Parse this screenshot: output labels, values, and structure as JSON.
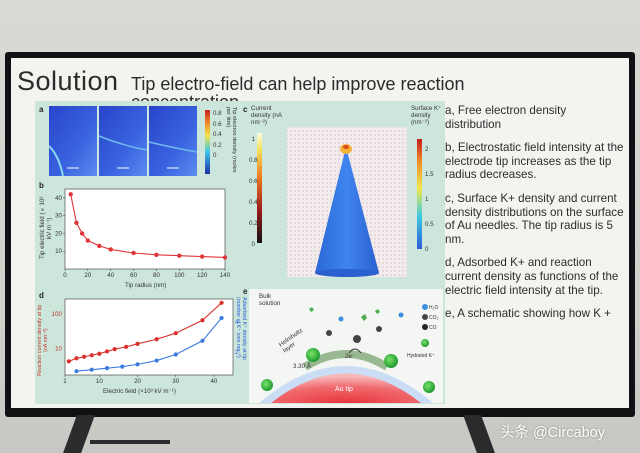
{
  "slide": {
    "title": "Solution",
    "subtitle": "Tip electro-field can help improve reaction",
    "subtitle_cut": "concentration",
    "notes": [
      "a, Free electron density distribution",
      "b, Electrostatic field intensity at the electrode tip increases as the tip radius decreases.",
      "c, Surface K+ density and current density distributions on the surface of Au needles. The tip radius is 5 nm.",
      "d, Adsorbed K+ and reaction current density as functions of the electric field intensity at the tip.",
      "e, A schematic showing how K +"
    ]
  },
  "figure": {
    "panel_labels": [
      "a",
      "b",
      "c",
      "d",
      "e"
    ],
    "panel_a": {
      "colorbar_ticks": [
        "0.8",
        "0.6",
        "0.4",
        "0.2",
        "0"
      ],
      "colorbar_label": "Tip electron density (moles per litre)"
    },
    "panel_c": {
      "left_label": "Current density (nA nm⁻²)",
      "left_ticks": [
        "1",
        "0.8",
        "0.6",
        "0.4",
        "0.2",
        "0"
      ],
      "right_label": "Surface K⁺ density (nm⁻²)",
      "right_ticks": [
        "2",
        "1.5",
        "1",
        "0.5",
        "0"
      ]
    },
    "panel_e": {
      "labels": [
        "Bulk solution",
        "Helmholtz layer",
        "3.30 Å",
        "2e⁻",
        "Au tip"
      ],
      "legend": [
        "H₂O",
        "CO₂",
        "CO",
        "Hydrated K⁺"
      ]
    }
  },
  "chart_data": [
    {
      "type": "line",
      "title": "",
      "xlabel": "Tip radius (nm)",
      "ylabel": "Tip electric field (×10³ kV m⁻¹)",
      "x_ticks": [
        "0",
        "20",
        "40",
        "60",
        "80",
        "100",
        "120",
        "140"
      ],
      "y_ticks": [
        "10",
        "20",
        "30",
        "40"
      ],
      "xlim": [
        0,
        140
      ],
      "ylim": [
        0,
        45
      ],
      "series": [
        {
          "x": [
            5,
            10,
            15,
            20,
            30,
            40,
            60,
            80,
            100,
            120,
            140
          ],
          "y": [
            42,
            26,
            20,
            16,
            13,
            11,
            9,
            8,
            7.5,
            7,
            6.5
          ]
        }
      ]
    },
    {
      "type": "scatter",
      "title": "",
      "xlabel": "Electric field (×10³ kV m⁻¹)",
      "ylabel": "Reaction current density at tip (nA nm⁻²)",
      "ylabel_right": "Adsorbed K⁺ density at tip (number of K⁺ ions nm⁻²)",
      "x_ticks": [
        "1",
        "10",
        "20",
        "30",
        "40"
      ],
      "y_ticks": [
        "10",
        "100"
      ],
      "y_ticks_right": [
        "2",
        "4"
      ],
      "xlim": [
        1,
        45
      ],
      "series": [
        {
          "color": "#d9312b",
          "x": [
            2,
            4,
            6,
            8,
            10,
            12,
            14,
            17,
            20,
            25,
            30,
            37,
            42
          ],
          "y": [
            0.18,
            0.22,
            0.24,
            0.26,
            0.28,
            0.31,
            0.34,
            0.37,
            0.41,
            0.47,
            0.55,
            0.72,
            0.95
          ]
        },
        {
          "color": "#3b7be0",
          "x": [
            4,
            8,
            12,
            16,
            20,
            25,
            30,
            37,
            42
          ],
          "y": [
            0.05,
            0.07,
            0.09,
            0.11,
            0.14,
            0.19,
            0.27,
            0.45,
            0.75
          ]
        }
      ]
    }
  ],
  "watermark": "头条 @Circaboy"
}
